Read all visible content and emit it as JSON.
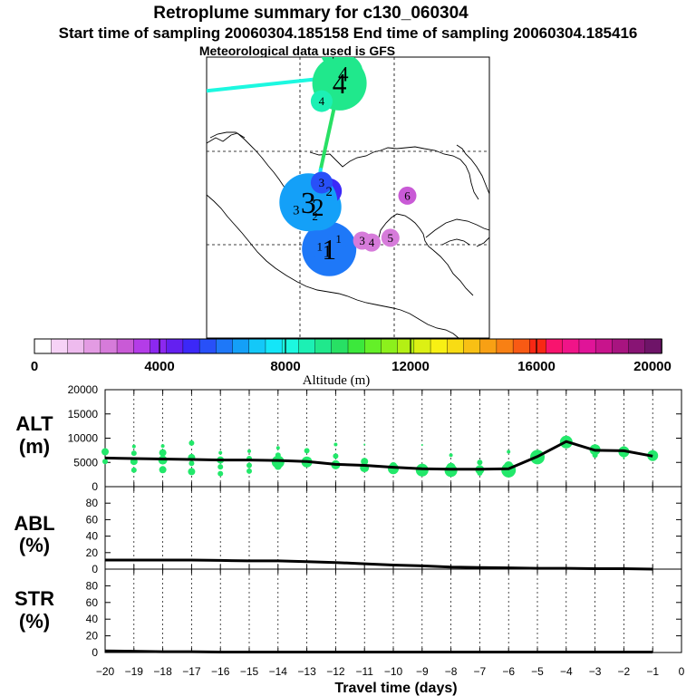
{
  "titles": {
    "line1": "Retroplume summary for c130_060304",
    "line2": "Start time of sampling 20060304.185158     End time of sampling 20060304.185416",
    "line3": "Meteorological data used is GFS"
  },
  "colorbar": {
    "label": "Altitude (m)",
    "ticks": [
      "0",
      "4000",
      "8000",
      "12000",
      "16000",
      "20000"
    ],
    "colors": [
      "#ffffff",
      "#f6d2f6",
      "#eebbee",
      "#e39be3",
      "#d67bda",
      "#c95ad6",
      "#b43ce8",
      "#8c28f0",
      "#6420f0",
      "#3c28f8",
      "#2850f8",
      "#1e78f8",
      "#14a0f8",
      "#14c8f8",
      "#14e6f8",
      "#1cf8e0",
      "#1cf0b4",
      "#20e88c",
      "#28e064",
      "#3ce83c",
      "#64f028",
      "#8cf01c",
      "#b4f014",
      "#dcf014",
      "#f8f014",
      "#f8dc14",
      "#f8c014",
      "#f8a014",
      "#f88014",
      "#f85a14",
      "#f82814",
      "#f8146e",
      "#f01488",
      "#e01498",
      "#c8148c",
      "#a81480",
      "#881474",
      "#6e1468"
    ]
  },
  "map": {
    "markers": [
      {
        "t": "1",
        "lon": -97.2,
        "lat": 19.3,
        "alt": 5800,
        "s": 18
      },
      {
        "t": "1",
        "lon": -97.0,
        "lat": 19.5,
        "alt": 6000,
        "s": 30
      },
      {
        "t": "1",
        "lon": -96.0,
        "lat": 20.6,
        "alt": 5900,
        "s": 12
      },
      {
        "t": "1",
        "lon": -98.0,
        "lat": 19.8,
        "alt": 5800,
        "s": 12
      },
      {
        "t": "2",
        "lon": -98.2,
        "lat": 24.0,
        "alt": 6500,
        "s": 26
      },
      {
        "t": "2",
        "lon": -97.0,
        "lat": 25.7,
        "alt": 5200,
        "s": 14
      },
      {
        "t": "2",
        "lon": -98.5,
        "lat": 23.0,
        "alt": 5500,
        "s": 12
      },
      {
        "t": "3",
        "lon": -99.2,
        "lat": 24.5,
        "alt": 6600,
        "s": 32
      },
      {
        "t": "3",
        "lon": -100.5,
        "lat": 23.7,
        "alt": 6400,
        "s": 14
      },
      {
        "t": "3",
        "lon": -97.8,
        "lat": 26.6,
        "alt": 5700,
        "s": 12
      },
      {
        "t": "3",
        "lon": -93.5,
        "lat": 20.4,
        "alt": 2500,
        "s": 10
      },
      {
        "t": "4",
        "lon": -95.9,
        "lat": 37.2,
        "alt": 9400,
        "s": 30
      },
      {
        "t": "4",
        "lon": -95.5,
        "lat": 38.2,
        "alt": 9300,
        "s": 22
      },
      {
        "t": "4",
        "lon": -96.7,
        "lat": 40.3,
        "alt": 9200,
        "s": 12
      },
      {
        "t": "4",
        "lon": -97.8,
        "lat": 35.3,
        "alt": 8800,
        "s": 12
      },
      {
        "t": "4",
        "lon": -92.5,
        "lat": 20.2,
        "alt": 2200,
        "s": 10
      },
      {
        "t": "5",
        "lon": -90.5,
        "lat": 20.7,
        "alt": 2500,
        "s": 10
      },
      {
        "t": "6",
        "lon": -88.7,
        "lat": 25.2,
        "alt": 3000,
        "s": 10
      }
    ],
    "tracks": [
      {
        "alt": 8000,
        "pts": [
          [
            -110,
            36.4
          ],
          [
            -96,
            37.9
          ]
        ]
      },
      {
        "alt": 9800,
        "pts": [
          [
            -95.9,
            37.2
          ],
          [
            -97.9,
            28.0
          ]
        ]
      },
      {
        "alt": 7800,
        "pts": [
          [
            -97.9,
            28.0
          ],
          [
            -98.5,
            24.0
          ]
        ]
      },
      {
        "alt": 7300,
        "pts": [
          [
            -98.5,
            24.0
          ],
          [
            -97.5,
            19.8
          ]
        ]
      },
      {
        "alt": 7000,
        "pts": [
          [
            -97.5,
            19.8
          ],
          [
            -97.8,
            17.6
          ]
        ]
      }
    ]
  },
  "chart_data": [
    {
      "type": "scatter",
      "name": "ALT",
      "title": "ALT (m)",
      "xlabel": "Travel time (days)",
      "xlim": [
        -20,
        0
      ],
      "ylim": [
        0,
        20000
      ],
      "xticks": [
        -20,
        -19,
        -18,
        -17,
        -16,
        -15,
        -14,
        -13,
        -12,
        -11,
        -10,
        -9,
        -8,
        -7,
        -6,
        -5,
        -4,
        -3,
        -2,
        -1,
        0
      ],
      "xtick_labels": [
        "−20",
        "−19",
        "−18",
        "−17",
        "−16",
        "−15",
        "−14",
        "−13",
        "−12",
        "−11",
        "−10",
        "−9",
        "−8",
        "−7",
        "−6",
        "−5",
        "−4",
        "−3",
        "−2",
        "−1",
        "0"
      ],
      "yticks": [
        0,
        5000,
        10000,
        15000,
        20000
      ],
      "ytick_labels": [
        "0",
        "5000",
        "10000",
        "15000",
        "20000"
      ],
      "line": {
        "x": [
          -20,
          -19,
          -18,
          -17,
          -16,
          -15,
          -14,
          -13,
          -12,
          -11,
          -10,
          -9,
          -8,
          -7,
          -6,
          -5,
          -4,
          -3,
          -2,
          -1
        ],
        "y": [
          5900,
          5800,
          5700,
          5600,
          5500,
          5500,
          5400,
          5200,
          4600,
          4400,
          4000,
          3700,
          3600,
          3600,
          3700,
          6200,
          9300,
          7500,
          7400,
          6300
        ]
      },
      "points": [
        {
          "x": -20,
          "y": 7200,
          "s": 4
        },
        {
          "x": -20,
          "y": 5200,
          "s": 3
        },
        {
          "x": -19,
          "y": 8300,
          "s": 2
        },
        {
          "x": -19,
          "y": 6900,
          "s": 3
        },
        {
          "x": -19,
          "y": 5200,
          "s": 4
        },
        {
          "x": -19,
          "y": 3400,
          "s": 3
        },
        {
          "x": -18,
          "y": 8400,
          "s": 2
        },
        {
          "x": -18,
          "y": 7000,
          "s": 4
        },
        {
          "x": -18,
          "y": 5500,
          "s": 5
        },
        {
          "x": -18,
          "y": 3500,
          "s": 4
        },
        {
          "x": -17,
          "y": 9000,
          "s": 3
        },
        {
          "x": -17,
          "y": 6000,
          "s": 4
        },
        {
          "x": -17,
          "y": 4800,
          "s": 3
        },
        {
          "x": -17,
          "y": 3100,
          "s": 4
        },
        {
          "x": -16,
          "y": 7000,
          "s": 2
        },
        {
          "x": -16,
          "y": 5500,
          "s": 4
        },
        {
          "x": -16,
          "y": 4100,
          "s": 3
        },
        {
          "x": -16,
          "y": 2700,
          "s": 3
        },
        {
          "x": -15,
          "y": 7300,
          "s": 2
        },
        {
          "x": -15,
          "y": 5800,
          "s": 3
        },
        {
          "x": -15,
          "y": 4400,
          "s": 3
        },
        {
          "x": -15,
          "y": 3200,
          "s": 3
        },
        {
          "x": -14,
          "y": 8000,
          "s": 2
        },
        {
          "x": -14,
          "y": 6500,
          "s": 3
        },
        {
          "x": -14,
          "y": 5100,
          "s": 7
        },
        {
          "x": -14,
          "y": 4200,
          "s": 4
        },
        {
          "x": -13,
          "y": 7400,
          "s": 3
        },
        {
          "x": -13,
          "y": 5100,
          "s": 6
        },
        {
          "x": -12,
          "y": 8700,
          "s": 2
        },
        {
          "x": -12,
          "y": 6300,
          "s": 3
        },
        {
          "x": -12,
          "y": 4500,
          "s": 5
        },
        {
          "x": -11,
          "y": 8700,
          "s": 1
        },
        {
          "x": -11,
          "y": 5200,
          "s": 4
        },
        {
          "x": -11,
          "y": 3900,
          "s": 5
        },
        {
          "x": -10,
          "y": 4300,
          "s": 4
        },
        {
          "x": -10,
          "y": 3700,
          "s": 6
        },
        {
          "x": -9,
          "y": 8600,
          "s": 1
        },
        {
          "x": -9,
          "y": 4000,
          "s": 4
        },
        {
          "x": -9,
          "y": 3400,
          "s": 7
        },
        {
          "x": -8,
          "y": 6500,
          "s": 2
        },
        {
          "x": -8,
          "y": 4000,
          "s": 5
        },
        {
          "x": -8,
          "y": 3300,
          "s": 7
        },
        {
          "x": -7,
          "y": 5000,
          "s": 3
        },
        {
          "x": -7,
          "y": 3500,
          "s": 5
        },
        {
          "x": -7,
          "y": 2800,
          "s": 3
        },
        {
          "x": -6,
          "y": 7200,
          "s": 2
        },
        {
          "x": -6,
          "y": 4300,
          "s": 5
        },
        {
          "x": -6,
          "y": 3400,
          "s": 8
        },
        {
          "x": -5,
          "y": 6100,
          "s": 8
        },
        {
          "x": -4,
          "y": 9200,
          "s": 7
        },
        {
          "x": -3,
          "y": 7600,
          "s": 6
        },
        {
          "x": -3,
          "y": 6500,
          "s": 3
        },
        {
          "x": -2,
          "y": 7800,
          "s": 3
        },
        {
          "x": -2,
          "y": 7200,
          "s": 6
        },
        {
          "x": -2,
          "y": 5900,
          "s": 1
        },
        {
          "x": -1,
          "y": 6400,
          "s": 6
        }
      ]
    },
    {
      "type": "line",
      "name": "ABL",
      "title": "ABL (%)",
      "xlim": [
        -20,
        0
      ],
      "ylim": [
        0,
        100
      ],
      "yticks": [
        0,
        20,
        40,
        60,
        80
      ],
      "ytick_labels": [
        "0",
        "20",
        "40",
        "60",
        "80"
      ],
      "x": [
        -20,
        -19,
        -18,
        -17,
        -16,
        -15,
        -14,
        -13,
        -12,
        -11,
        -10,
        -9,
        -8,
        -7,
        -6,
        -5,
        -4,
        -3,
        -2,
        -1
      ],
      "y": [
        11,
        11,
        11,
        11,
        10.5,
        10,
        10,
        9,
        8,
        6.5,
        5,
        4,
        2.5,
        2,
        1.5,
        1,
        1,
        0.5,
        0.5,
        0
      ]
    },
    {
      "type": "line",
      "name": "STR",
      "title": "STR (%)",
      "xlim": [
        -20,
        0
      ],
      "ylim": [
        0,
        100
      ],
      "yticks": [
        0,
        20,
        40,
        60,
        80
      ],
      "ytick_labels": [
        "0",
        "20",
        "40",
        "60",
        "80"
      ],
      "x": [
        -20,
        -19,
        -18,
        -17,
        -16,
        -15,
        -14,
        -13,
        -12,
        -11,
        -10,
        -9,
        -8,
        -7,
        -6,
        -5,
        -4,
        -3,
        -2,
        -1
      ],
      "y": [
        2,
        1.5,
        1,
        1,
        0.5,
        0.5,
        0.5,
        0.5,
        0.5,
        0.5,
        0.5,
        0.5,
        0.5,
        0.5,
        0.5,
        0.5,
        0.5,
        0.5,
        0.5,
        0.5
      ]
    }
  ]
}
